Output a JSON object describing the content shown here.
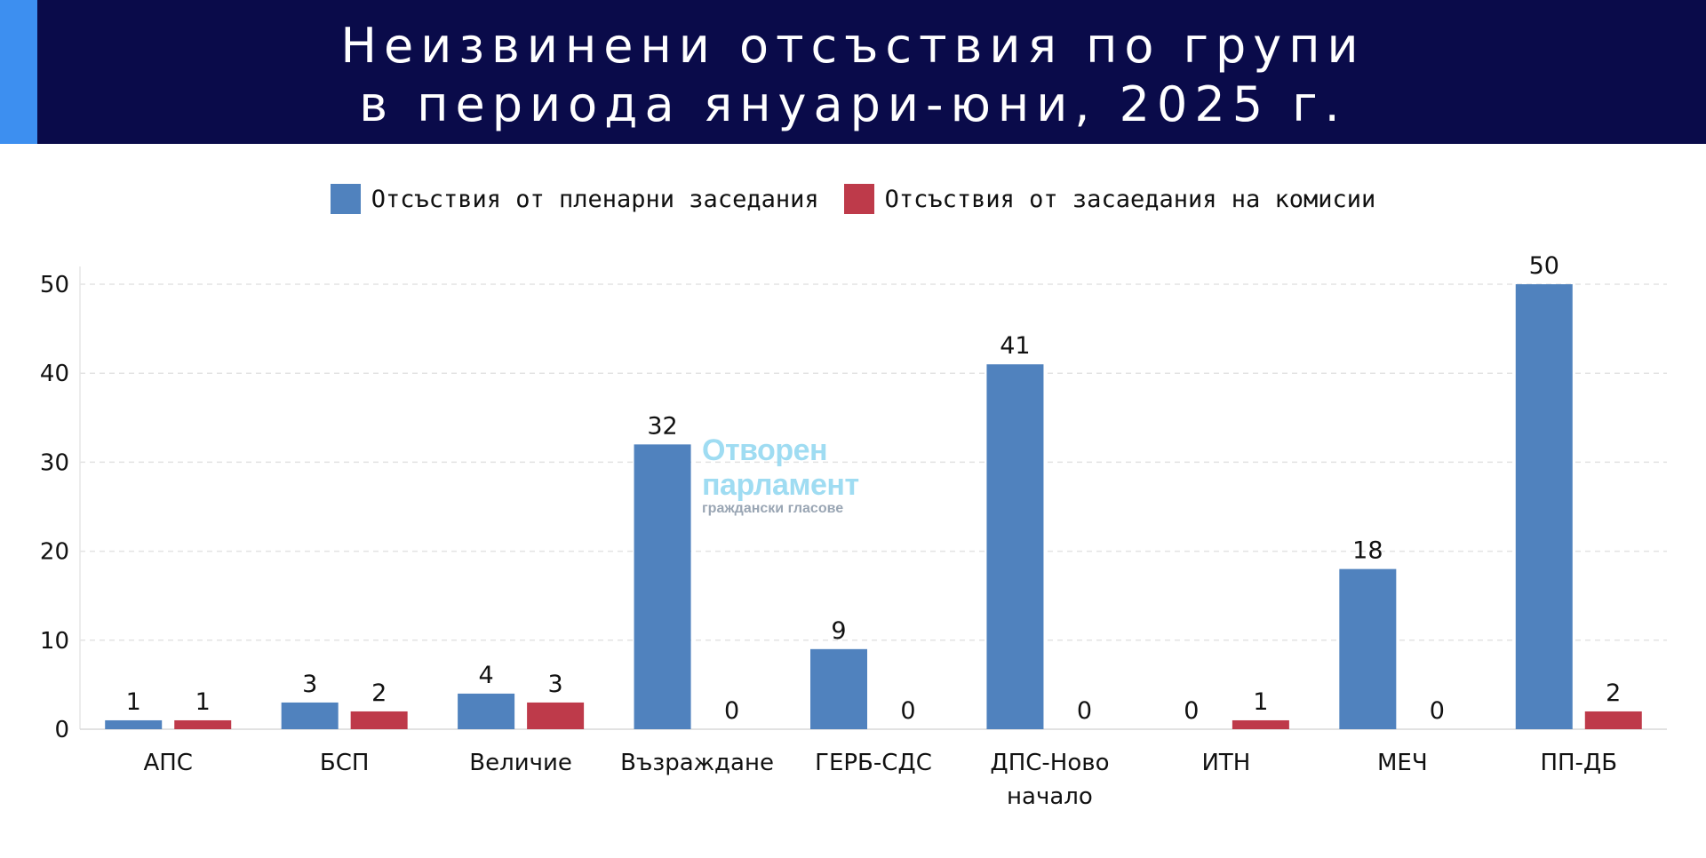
{
  "header": {
    "title_line1": "Неизвинени отсъствия по групи",
    "title_line2": "в периода януари-юни, 2025 г.",
    "background_color": "#0a0b4a",
    "accent_color": "#3d8ff0"
  },
  "watermark": {
    "title": "Отворен парламент",
    "subtitle": "граждански гласове"
  },
  "chart_data": {
    "type": "bar",
    "title": "Неизвинени отсъствия по групи в периода януари-юни, 2025 г.",
    "categories": [
      "АПС",
      "БСП",
      "Величие",
      "Възраждане",
      "ГЕРБ-СДС",
      "ДПС-Ново начало",
      "ИТН",
      "МЕЧ",
      "ПП-ДБ"
    ],
    "category_lines": [
      [
        "АПС"
      ],
      [
        "БСП"
      ],
      [
        "Величие"
      ],
      [
        "Възраждане"
      ],
      [
        "ГЕРБ-СДС"
      ],
      [
        "ДПС-Ново",
        "начало"
      ],
      [
        "ИТН"
      ],
      [
        "МЕЧ"
      ],
      [
        "ПП-ДБ"
      ]
    ],
    "series": [
      {
        "name": "Отсъствия от пленарни заседания",
        "color": "#5082be",
        "values": [
          1,
          3,
          4,
          32,
          9,
          41,
          0,
          18,
          50
        ]
      },
      {
        "name": "Отсъствия от засаедания на комисии",
        "color": "#be3a4a",
        "values": [
          1,
          2,
          3,
          0,
          0,
          0,
          1,
          0,
          2
        ]
      }
    ],
    "y_ticks": [
      0,
      10,
      20,
      30,
      40,
      50
    ],
    "ylim": [
      0,
      52
    ],
    "xlabel": "",
    "ylabel": "",
    "grid": true,
    "legend_position": "top-center",
    "data_labels": true
  }
}
